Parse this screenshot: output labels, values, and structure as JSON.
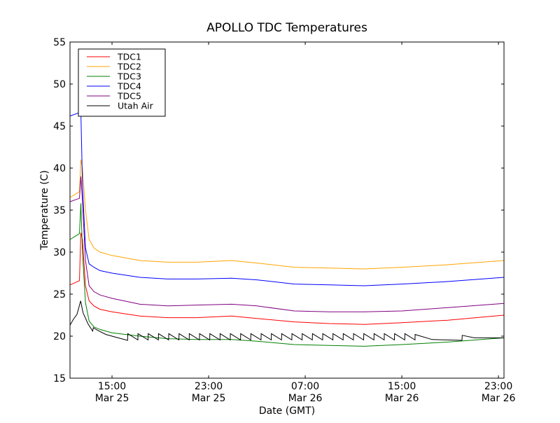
{
  "chart_data": {
    "type": "line",
    "title": "APOLLO TDC Temperatures",
    "xlabel": "Date (GMT)",
    "ylabel": "Temperature (C)",
    "x_units": "hours since 00:00 Mar 25 (GMT)",
    "xlim": [
      11.52,
      47.46
    ],
    "ylim": [
      15,
      55
    ],
    "grid": false,
    "legend_position": "top-left",
    "xticks": [
      {
        "value": 15,
        "time": "15:00",
        "date": "Mar 25"
      },
      {
        "value": 23,
        "time": "23:00",
        "date": "Mar 25"
      },
      {
        "value": 31,
        "time": "07:00",
        "date": "Mar 26"
      },
      {
        "value": 39,
        "time": "15:00",
        "date": "Mar 26"
      },
      {
        "value": 47,
        "time": "23:00",
        "date": "Mar 26"
      }
    ],
    "yticks": [
      15,
      20,
      25,
      30,
      35,
      40,
      45,
      50,
      55
    ],
    "x": [
      11.52,
      12.3,
      12.42,
      12.55,
      12.8,
      13.1,
      13.5,
      14.0,
      15.0,
      17.3,
      19.6,
      22.0,
      24.9,
      27.0,
      30.1,
      33.0,
      35.9,
      39.0,
      42.8,
      47.46
    ],
    "series": [
      {
        "name": "TDC1",
        "color": "#ff0000",
        "values": [
          26.1,
          26.6,
          32.3,
          31.5,
          26.0,
          24.2,
          23.6,
          23.2,
          22.9,
          22.4,
          22.2,
          22.2,
          22.4,
          22.1,
          21.7,
          21.5,
          21.4,
          21.6,
          21.9,
          22.5
        ]
      },
      {
        "name": "TDC2",
        "color": "#ffa500",
        "values": [
          36.5,
          37.2,
          41.0,
          40.0,
          35.0,
          31.5,
          30.5,
          30.0,
          29.6,
          29.0,
          28.8,
          28.8,
          29.0,
          28.7,
          28.2,
          28.1,
          28.0,
          28.2,
          28.5,
          29.0
        ]
      },
      {
        "name": "TDC3",
        "color": "#008000",
        "values": [
          31.5,
          32.2,
          35.8,
          30.0,
          24.0,
          21.8,
          21.1,
          20.8,
          20.4,
          20.0,
          19.7,
          19.6,
          19.6,
          19.4,
          19.0,
          18.9,
          18.8,
          19.0,
          19.3,
          19.8
        ]
      },
      {
        "name": "TDC4",
        "color": "#0000ff",
        "values": [
          46.2,
          46.6,
          46.8,
          38.0,
          30.5,
          28.6,
          28.2,
          27.8,
          27.5,
          27.0,
          26.8,
          26.8,
          26.9,
          26.7,
          26.2,
          26.1,
          26.0,
          26.2,
          26.5,
          27.0
        ]
      },
      {
        "name": "TDC5",
        "color": "#800080",
        "values": [
          36.0,
          36.4,
          39.0,
          36.0,
          29.0,
          26.0,
          25.3,
          24.9,
          24.5,
          23.8,
          23.6,
          23.7,
          23.8,
          23.6,
          23.0,
          22.9,
          22.9,
          23.0,
          23.4,
          23.9
        ]
      },
      {
        "name": "Utah Air",
        "color": "#000000",
        "points": [
          [
            11.52,
            21.3
          ],
          [
            11.8,
            22.0
          ],
          [
            12.1,
            22.6
          ],
          [
            12.25,
            23.4
          ],
          [
            12.4,
            24.2
          ],
          [
            12.6,
            22.8
          ],
          [
            13.0,
            21.5
          ],
          [
            13.4,
            20.6
          ],
          [
            13.45,
            21.0
          ],
          [
            13.8,
            20.7
          ],
          [
            14.5,
            20.2
          ],
          [
            15.5,
            19.8
          ],
          [
            16.29,
            19.5
          ],
          [
            16.3,
            20.3
          ],
          [
            17.14,
            19.55
          ],
          [
            17.15,
            20.3
          ],
          [
            17.99,
            19.55
          ],
          [
            18.0,
            20.3
          ],
          [
            18.84,
            19.55
          ],
          [
            18.85,
            20.3
          ],
          [
            19.69,
            19.55
          ],
          [
            19.7,
            20.3
          ],
          [
            20.54,
            19.55
          ],
          [
            20.55,
            20.3
          ],
          [
            21.39,
            19.55
          ],
          [
            21.4,
            20.3
          ],
          [
            22.24,
            19.55
          ],
          [
            22.25,
            20.3
          ],
          [
            23.09,
            19.55
          ],
          [
            23.1,
            20.3
          ],
          [
            23.94,
            19.55
          ],
          [
            23.95,
            20.3
          ],
          [
            24.79,
            19.55
          ],
          [
            24.8,
            20.3
          ],
          [
            25.64,
            19.55
          ],
          [
            25.65,
            20.3
          ],
          [
            26.49,
            19.55
          ],
          [
            26.5,
            20.3
          ],
          [
            27.34,
            19.55
          ],
          [
            27.35,
            20.3
          ],
          [
            28.19,
            19.55
          ],
          [
            28.2,
            20.3
          ],
          [
            29.04,
            19.55
          ],
          [
            29.05,
            20.3
          ],
          [
            29.89,
            19.55
          ],
          [
            29.9,
            20.3
          ],
          [
            30.74,
            19.55
          ],
          [
            30.75,
            20.3
          ],
          [
            31.59,
            19.55
          ],
          [
            31.6,
            20.3
          ],
          [
            32.44,
            19.55
          ],
          [
            32.45,
            20.3
          ],
          [
            33.29,
            19.55
          ],
          [
            33.3,
            20.3
          ],
          [
            34.14,
            19.55
          ],
          [
            34.15,
            20.3
          ],
          [
            34.99,
            19.55
          ],
          [
            35.0,
            20.3
          ],
          [
            35.84,
            19.55
          ],
          [
            35.85,
            20.3
          ],
          [
            36.69,
            19.55
          ],
          [
            36.7,
            20.3
          ],
          [
            37.54,
            19.55
          ],
          [
            37.55,
            20.3
          ],
          [
            38.39,
            19.55
          ],
          [
            38.4,
            20.3
          ],
          [
            39.24,
            19.55
          ],
          [
            39.25,
            20.3
          ],
          [
            40.09,
            19.55
          ],
          [
            40.1,
            20.2
          ],
          [
            41.5,
            19.6
          ],
          [
            43.98,
            19.5
          ],
          [
            44.0,
            20.1
          ],
          [
            45.0,
            19.8
          ],
          [
            47.46,
            19.8
          ]
        ]
      }
    ]
  }
}
